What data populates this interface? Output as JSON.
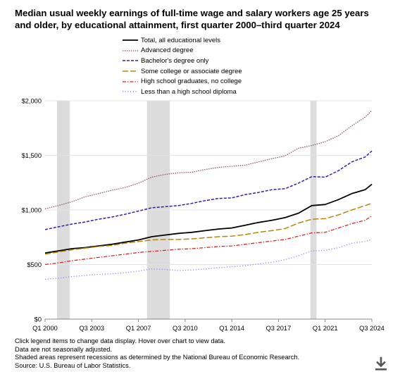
{
  "title": "Median usual weekly earnings of full-time wage and salary workers age 25 years and older, by educational attainment, first quarter 2000–third quarter 2024",
  "notes": [
    "Click legend items to change data display. Hover over chart to view data.",
    "Data are not seasonally adjusted.",
    "Shaded areas represent recessions as determined by the National Bureau of Economic Research.",
    "Source: U.S. Bureau of Labor Statistics."
  ],
  "download_icon": "download-icon",
  "chart_data": {
    "type": "line",
    "title": "Median usual weekly earnings of full-time wage and salary workers age 25 years and older, by educational attainment, first quarter 2000–third quarter 2024",
    "x": [
      "Q1 2000",
      "Q1 2001",
      "Q1 2002",
      "Q1 2003",
      "Q1 2004",
      "Q1 2005",
      "Q1 2006",
      "Q1 2007",
      "Q1 2008",
      "Q1 2009",
      "Q1 2010",
      "Q1 2011",
      "Q1 2012",
      "Q1 2013",
      "Q1 2014",
      "Q1 2015",
      "Q1 2016",
      "Q1 2017",
      "Q1 2018",
      "Q1 2019",
      "Q1 2020",
      "Q1 2021",
      "Q1 2022",
      "Q1 2023",
      "Q1 2024",
      "Q3 2024"
    ],
    "x_tick_labels": [
      "Q1 2000",
      "Q3 2003",
      "Q1 2007",
      "Q3 2010",
      "Q1 2014",
      "Q3 2017",
      "Q1 2021",
      "Q3 2024"
    ],
    "y_tick_labels": [
      "$0",
      "$500",
      "$1,000",
      "$1,500",
      "$2,000"
    ],
    "ylim": [
      0,
      2000
    ],
    "grid": true,
    "legend_position": "top",
    "recessions": [
      [
        "Q1 2001",
        "Q4 2001"
      ],
      [
        "Q4 2007",
        "Q2 2009"
      ],
      [
        "Q1 2020",
        "Q2 2020"
      ]
    ],
    "series": [
      {
        "name": "Total, all educational levels",
        "color": "#000000",
        "style": "solid",
        "values": [
          605,
          625,
          645,
          655,
          670,
          685,
          705,
          725,
          755,
          770,
          785,
          795,
          810,
          825,
          835,
          860,
          885,
          905,
          930,
          970,
          1040,
          1050,
          1095,
          1150,
          1185,
          1235
        ]
      },
      {
        "name": "Advanced degree",
        "color": "#8b5a5a",
        "style": "dotted",
        "values": [
          1010,
          1040,
          1075,
          1120,
          1150,
          1180,
          1205,
          1245,
          1300,
          1325,
          1340,
          1345,
          1370,
          1390,
          1400,
          1410,
          1440,
          1470,
          1495,
          1565,
          1590,
          1625,
          1680,
          1770,
          1850,
          1910
        ]
      },
      {
        "name": "Bachelor's degree only",
        "color": "#3d1aa8",
        "style": "dashed",
        "values": [
          820,
          845,
          870,
          890,
          915,
          935,
          960,
          990,
          1020,
          1030,
          1040,
          1060,
          1085,
          1105,
          1110,
          1140,
          1160,
          1185,
          1195,
          1245,
          1305,
          1300,
          1360,
          1440,
          1485,
          1540
        ]
      },
      {
        "name": "Some college or associate degree",
        "color": "#b8860b",
        "style": "longdash",
        "values": [
          595,
          615,
          635,
          650,
          665,
          675,
          695,
          710,
          725,
          730,
          730,
          735,
          745,
          755,
          760,
          775,
          795,
          810,
          830,
          880,
          915,
          920,
          955,
          1000,
          1040,
          1060
        ]
      },
      {
        "name": "High school graduates, no college",
        "color": "#d62728",
        "style": "dashdot",
        "values": [
          500,
          515,
          535,
          550,
          565,
          580,
          595,
          610,
          620,
          630,
          640,
          645,
          655,
          665,
          670,
          685,
          700,
          715,
          730,
          760,
          790,
          795,
          835,
          875,
          905,
          945
        ]
      },
      {
        "name": "Less than a high school diploma",
        "color": "#8a8af0",
        "style": "dotted",
        "values": [
          365,
          375,
          390,
          400,
          410,
          415,
          425,
          440,
          460,
          455,
          445,
          450,
          460,
          470,
          480,
          490,
          505,
          520,
          545,
          580,
          625,
          630,
          655,
          695,
          710,
          735
        ]
      }
    ]
  }
}
